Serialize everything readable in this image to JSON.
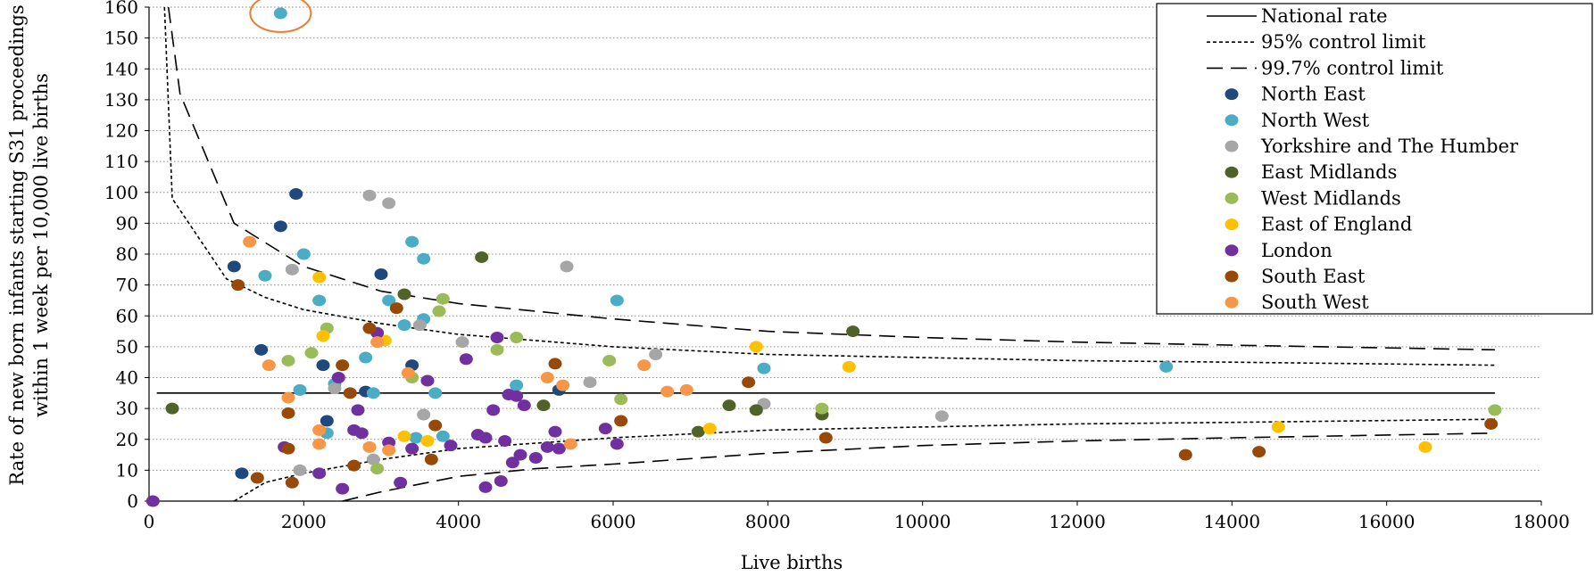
{
  "chart_data": {
    "type": "scatter",
    "title": "",
    "xlabel": "Live births",
    "ylabel_lines": [
      "Rate of new born infants starting S31 proceedings",
      "within 1 week per 10,000 live births"
    ],
    "xlim": [
      0,
      18000
    ],
    "ylim": [
      0,
      160
    ],
    "xticks": [
      0,
      2000,
      4000,
      6000,
      8000,
      10000,
      12000,
      14000,
      16000,
      18000
    ],
    "yticks": [
      0,
      10,
      20,
      30,
      40,
      50,
      60,
      70,
      80,
      90,
      100,
      110,
      120,
      130,
      140,
      150,
      160
    ],
    "grid": "horizontal dotted",
    "legend_position": "top-right",
    "national_rate": 35,
    "lines": [
      {
        "name": "National rate",
        "style": "solid",
        "points": [
          [
            100,
            35
          ],
          [
            17400,
            35
          ]
        ]
      },
      {
        "name": "95% control limit",
        "style": "dotted",
        "upper": [
          [
            200,
            160
          ],
          [
            300,
            98
          ],
          [
            1000,
            72
          ],
          [
            1500,
            66
          ],
          [
            2000,
            62
          ],
          [
            3000,
            57.5
          ],
          [
            4000,
            54
          ],
          [
            6000,
            50
          ],
          [
            8000,
            47.5
          ],
          [
            10000,
            46.5
          ],
          [
            12000,
            45.5
          ],
          [
            14000,
            45
          ],
          [
            17400,
            44
          ]
        ],
        "lower": [
          [
            1100,
            0
          ],
          [
            1500,
            6
          ],
          [
            2000,
            9
          ],
          [
            3000,
            13.5
          ],
          [
            4000,
            17
          ],
          [
            6000,
            20.5
          ],
          [
            8000,
            23
          ],
          [
            10000,
            24
          ],
          [
            12000,
            25
          ],
          [
            14000,
            25.5
          ],
          [
            17400,
            26.5
          ]
        ]
      },
      {
        "name": "99.7% control limit",
        "style": "dashed",
        "upper": [
          [
            250,
            160
          ],
          [
            400,
            132
          ],
          [
            1100,
            90
          ],
          [
            2000,
            76
          ],
          [
            3000,
            68
          ],
          [
            4000,
            64
          ],
          [
            6000,
            59
          ],
          [
            8000,
            55
          ],
          [
            10000,
            53
          ],
          [
            12000,
            51.5
          ],
          [
            14000,
            50.5
          ],
          [
            17400,
            49
          ]
        ],
        "lower": [
          [
            2500,
            0
          ],
          [
            3000,
            3
          ],
          [
            4000,
            8
          ],
          [
            5000,
            10.5
          ],
          [
            6000,
            12
          ],
          [
            8000,
            15.5
          ],
          [
            10000,
            18
          ],
          [
            12000,
            19.5
          ],
          [
            14000,
            20.5
          ],
          [
            17400,
            22
          ]
        ]
      }
    ],
    "series": [
      {
        "name": "North East",
        "color": "#1F497D",
        "points": [
          [
            1100,
            76
          ],
          [
            1200,
            9
          ],
          [
            1450,
            49
          ],
          [
            1700,
            89
          ],
          [
            1900,
            99.5
          ],
          [
            2250,
            44
          ],
          [
            2300,
            26
          ],
          [
            2800,
            35.5
          ],
          [
            3000,
            73.5
          ],
          [
            3400,
            44
          ],
          [
            5300,
            36
          ]
        ]
      },
      {
        "name": "North West",
        "color": "#4BACC6",
        "points": [
          [
            1700,
            158
          ],
          [
            1500,
            73
          ],
          [
            1950,
            36
          ],
          [
            2000,
            80
          ],
          [
            2200,
            65
          ],
          [
            2300,
            22
          ],
          [
            2400,
            38
          ],
          [
            2800,
            46.5
          ],
          [
            2900,
            35
          ],
          [
            3100,
            65
          ],
          [
            3300,
            57
          ],
          [
            3400,
            84
          ],
          [
            3450,
            20.5
          ],
          [
            3550,
            59
          ],
          [
            3550,
            78.5
          ],
          [
            3700,
            35
          ],
          [
            3800,
            21
          ],
          [
            4750,
            37.5
          ],
          [
            6050,
            65
          ],
          [
            7950,
            43
          ],
          [
            13150,
            43.5
          ]
        ]
      },
      {
        "name": "Yorkshire and The Humber",
        "color": "#A6A6A6",
        "points": [
          [
            1850,
            75
          ],
          [
            1950,
            10
          ],
          [
            2400,
            36.5
          ],
          [
            2850,
            99
          ],
          [
            2900,
            13.5
          ],
          [
            3100,
            96.5
          ],
          [
            3500,
            57
          ],
          [
            3550,
            28
          ],
          [
            4050,
            51.5
          ],
          [
            5400,
            76
          ],
          [
            5700,
            38.5
          ],
          [
            6550,
            47.5
          ],
          [
            7950,
            31.5
          ],
          [
            10250,
            27.5
          ]
        ]
      },
      {
        "name": "East Midlands",
        "color": "#4F6228",
        "points": [
          [
            300,
            30
          ],
          [
            3300,
            67
          ],
          [
            4300,
            79
          ],
          [
            5100,
            31
          ],
          [
            7100,
            22.5
          ],
          [
            7500,
            31
          ],
          [
            7850,
            29.5
          ],
          [
            8700,
            28
          ],
          [
            9100,
            55
          ]
        ]
      },
      {
        "name": "West Midlands",
        "color": "#9BBB59",
        "points": [
          [
            1800,
            45.5
          ],
          [
            2100,
            48
          ],
          [
            2300,
            56
          ],
          [
            2950,
            10.5
          ],
          [
            3400,
            40
          ],
          [
            3750,
            61.5
          ],
          [
            3800,
            65.5
          ],
          [
            4500,
            49
          ],
          [
            4750,
            53
          ],
          [
            5950,
            45.5
          ],
          [
            6100,
            33
          ],
          [
            8700,
            30
          ],
          [
            17400,
            29.5
          ]
        ]
      },
      {
        "name": "East of England",
        "color": "#FFC000",
        "points": [
          [
            2200,
            72.5
          ],
          [
            2250,
            53.5
          ],
          [
            3050,
            52
          ],
          [
            3300,
            21
          ],
          [
            3600,
            19.5
          ],
          [
            7250,
            23.5
          ],
          [
            7850,
            50
          ],
          [
            9050,
            43.5
          ],
          [
            14600,
            24
          ],
          [
            16500,
            17.5
          ]
        ]
      },
      {
        "name": "London",
        "color": "#7030A0",
        "points": [
          [
            50,
            0
          ],
          [
            1750,
            17.5
          ],
          [
            2200,
            9
          ],
          [
            2450,
            40
          ],
          [
            2500,
            4
          ],
          [
            2650,
            23
          ],
          [
            2700,
            29.5
          ],
          [
            2750,
            22
          ],
          [
            2950,
            54.5
          ],
          [
            3100,
            19
          ],
          [
            3250,
            6
          ],
          [
            3400,
            17
          ],
          [
            3600,
            39
          ],
          [
            3900,
            18
          ],
          [
            4100,
            46
          ],
          [
            4250,
            21.5
          ],
          [
            4350,
            20.5
          ],
          [
            4350,
            4.5
          ],
          [
            4450,
            29.5
          ],
          [
            4500,
            53
          ],
          [
            4550,
            6.5
          ],
          [
            4600,
            19.5
          ],
          [
            4650,
            34.5
          ],
          [
            4700,
            12.5
          ],
          [
            4750,
            34
          ],
          [
            4800,
            15
          ],
          [
            4850,
            31
          ],
          [
            5000,
            14
          ],
          [
            5150,
            17.5
          ],
          [
            5250,
            22.5
          ],
          [
            5300,
            17
          ],
          [
            5900,
            23.5
          ],
          [
            6050,
            18.5
          ]
        ]
      },
      {
        "name": "South East",
        "color": "#984807",
        "points": [
          [
            1150,
            70
          ],
          [
            1400,
            7.5
          ],
          [
            1800,
            28.5
          ],
          [
            1800,
            17
          ],
          [
            1850,
            6
          ],
          [
            2500,
            44
          ],
          [
            2600,
            35
          ],
          [
            2650,
            11.5
          ],
          [
            2850,
            56
          ],
          [
            3200,
            62.5
          ],
          [
            3650,
            13.5
          ],
          [
            3700,
            24.5
          ],
          [
            5250,
            44.5
          ],
          [
            6100,
            26
          ],
          [
            7750,
            38.5
          ],
          [
            8750,
            20.5
          ],
          [
            13400,
            15
          ],
          [
            14350,
            16
          ],
          [
            17350,
            25
          ]
        ]
      },
      {
        "name": "South West",
        "color": "#F79646",
        "points": [
          [
            1300,
            84
          ],
          [
            1550,
            44
          ],
          [
            1800,
            33.5
          ],
          [
            2200,
            23
          ],
          [
            2200,
            18.5
          ],
          [
            2850,
            17.5
          ],
          [
            2950,
            51.5
          ],
          [
            3100,
            16.5
          ],
          [
            3350,
            41.5
          ],
          [
            5150,
            40
          ],
          [
            5350,
            37.5
          ],
          [
            5450,
            18.5
          ],
          [
            6400,
            44
          ],
          [
            6700,
            35.5
          ],
          [
            6950,
            36
          ]
        ]
      }
    ],
    "highlight": {
      "x": 1700,
      "y": 158,
      "shape": "circle",
      "color": "#ED7D31"
    }
  }
}
